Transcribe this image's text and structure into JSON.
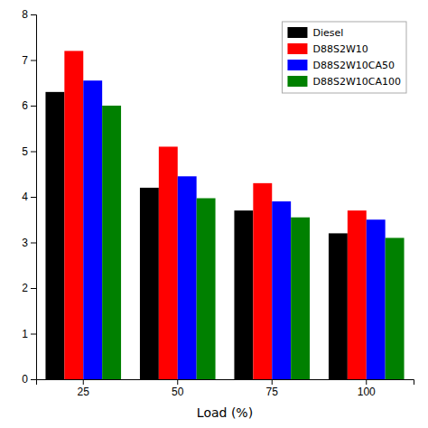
{
  "chart_data": {
    "type": "bar",
    "xlabel": "Load (%)",
    "categories": [
      "25",
      "50",
      "75",
      "100"
    ],
    "series": [
      {
        "name": "Diesel",
        "color": "#000000",
        "values": [
          6.3,
          4.2,
          3.7,
          3.2
        ]
      },
      {
        "name": "D88S2W10",
        "color": "#ff0000",
        "values": [
          7.2,
          5.1,
          4.3,
          3.7
        ]
      },
      {
        "name": "D88S2W10CA50",
        "color": "#0000ff",
        "values": [
          6.55,
          4.45,
          3.9,
          3.5
        ]
      },
      {
        "name": "D88S2W10CA100",
        "color": "#008000",
        "values": [
          6.0,
          3.97,
          3.55,
          3.1
        ]
      }
    ],
    "ylim": [
      0,
      8
    ],
    "yticks": [
      0,
      1,
      2,
      3,
      4,
      5,
      6,
      7,
      8
    ],
    "grid": false,
    "legend": "upper right"
  }
}
